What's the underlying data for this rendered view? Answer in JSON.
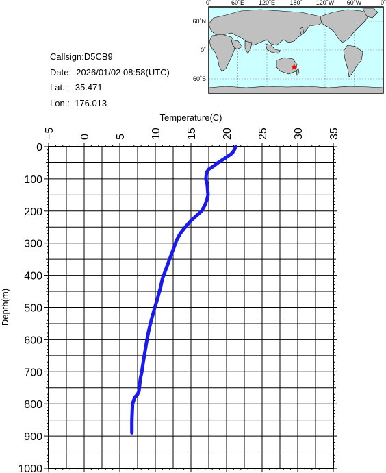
{
  "station": {
    "callsign": "Callsign:D5CB9",
    "date": "Date:  2026/01/02 08:58(UTC)",
    "lat": "Lat.:  -35.471",
    "lon": "Lon.:  176.013"
  },
  "map": {
    "lon_labels": [
      "0˚",
      "60˚E",
      "120˚E",
      "180˚",
      "120˚W",
      "60˚W",
      "0˚"
    ],
    "lat_labels": [
      "60˚N",
      "0˚",
      "60˚S"
    ],
    "marker": {
      "lat": -35.471,
      "lon": 176.013,
      "color": "#ff0000"
    },
    "ocean_color": "#ccffff",
    "land_color": "#c0c0c0"
  },
  "chart_data": {
    "type": "line",
    "xlabel": "Temperature(C)",
    "ylabel": "Depth(m)",
    "xlim": [
      -5,
      35
    ],
    "ylim": [
      0,
      1000
    ],
    "x_ticks": [
      -5,
      0,
      5,
      10,
      15,
      20,
      25,
      30,
      35
    ],
    "y_ticks": [
      0,
      100,
      200,
      300,
      400,
      500,
      600,
      700,
      800,
      900,
      1000
    ],
    "y_inverted": true,
    "x_axis_position": "top",
    "grid": true,
    "line_color": "#1a1aee",
    "series": [
      {
        "x": [
          21.3,
          21.1,
          20.8,
          20.5,
          19.5,
          18.8,
          18.2,
          17.5,
          17.2,
          17.1,
          17.3,
          17.4,
          17.3,
          17.0,
          16.5,
          16.0,
          15.5,
          15.0,
          14.2,
          13.5,
          13.0,
          12.5,
          12.0,
          11.5,
          11.0,
          10.7,
          10.2,
          9.8,
          9.3,
          8.9,
          8.6,
          8.3,
          8.1,
          7.9,
          7.8,
          7.7,
          7.5,
          7.1,
          6.8,
          6.7,
          6.7
        ],
        "y": [
          0,
          10,
          20,
          25,
          40,
          50,
          60,
          70,
          80,
          100,
          120,
          150,
          160,
          180,
          200,
          210,
          220,
          230,
          250,
          270,
          290,
          320,
          350,
          380,
          410,
          440,
          480,
          510,
          550,
          590,
          630,
          670,
          700,
          720,
          740,
          760,
          770,
          780,
          800,
          850,
          890
        ]
      }
    ]
  }
}
